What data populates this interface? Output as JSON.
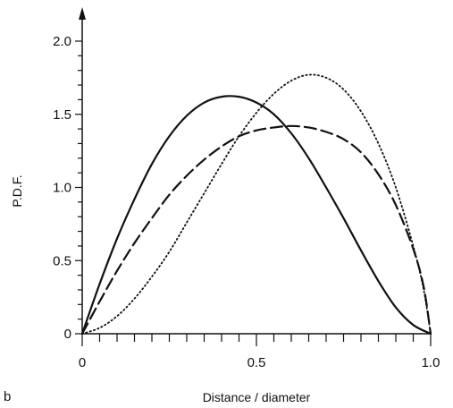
{
  "figure": {
    "panel_label": "b"
  },
  "chart_data": {
    "type": "line",
    "title": "",
    "xlabel": "Distance / diameter",
    "ylabel": "P.D.F.",
    "xlim": [
      0,
      1.0
    ],
    "ylim": [
      0,
      2.0
    ],
    "x_ticks": [
      0,
      0.5,
      1.0
    ],
    "x_tick_labels": [
      "0",
      "0.5",
      "1.0"
    ],
    "y_ticks": [
      0,
      0.5,
      1.0,
      1.5,
      2.0
    ],
    "y_tick_labels": [
      "0",
      "0.5",
      "1.0",
      "1.5",
      "2.0"
    ],
    "grid": false,
    "legend": "none",
    "colors": {
      "line": "#111111",
      "axis": "#111111",
      "background": "#ffffff"
    },
    "series": [
      {
        "style": "solid",
        "x": [
          0,
          0.05,
          0.1,
          0.15,
          0.2,
          0.25,
          0.3,
          0.35,
          0.4,
          0.45,
          0.5,
          0.55,
          0.6,
          0.65,
          0.7,
          0.75,
          0.8,
          0.85,
          0.9,
          0.95,
          1.0
        ],
        "y": [
          0,
          0.34,
          0.65,
          0.92,
          1.16,
          1.35,
          1.49,
          1.58,
          1.62,
          1.62,
          1.58,
          1.5,
          1.37,
          1.2,
          1.0,
          0.79,
          0.57,
          0.36,
          0.18,
          0.06,
          0
        ]
      },
      {
        "style": "dashed",
        "x": [
          0,
          0.05,
          0.1,
          0.15,
          0.2,
          0.25,
          0.3,
          0.35,
          0.4,
          0.45,
          0.5,
          0.55,
          0.6,
          0.65,
          0.7,
          0.75,
          0.8,
          0.85,
          0.9,
          0.95,
          0.98,
          1.0
        ],
        "y": [
          0,
          0.22,
          0.43,
          0.62,
          0.79,
          0.95,
          1.08,
          1.19,
          1.28,
          1.35,
          1.39,
          1.41,
          1.42,
          1.41,
          1.38,
          1.33,
          1.24,
          1.09,
          0.88,
          0.58,
          0.32,
          0
        ]
      },
      {
        "style": "dotted",
        "x": [
          0,
          0.05,
          0.1,
          0.15,
          0.2,
          0.25,
          0.3,
          0.35,
          0.4,
          0.45,
          0.5,
          0.55,
          0.6,
          0.65,
          0.7,
          0.75,
          0.8,
          0.85,
          0.9,
          0.95,
          0.98,
          1.0
        ],
        "y": [
          0,
          0.04,
          0.12,
          0.24,
          0.39,
          0.56,
          0.76,
          0.96,
          1.16,
          1.35,
          1.51,
          1.64,
          1.73,
          1.77,
          1.75,
          1.67,
          1.52,
          1.3,
          1.0,
          0.6,
          0.3,
          0
        ]
      }
    ]
  }
}
